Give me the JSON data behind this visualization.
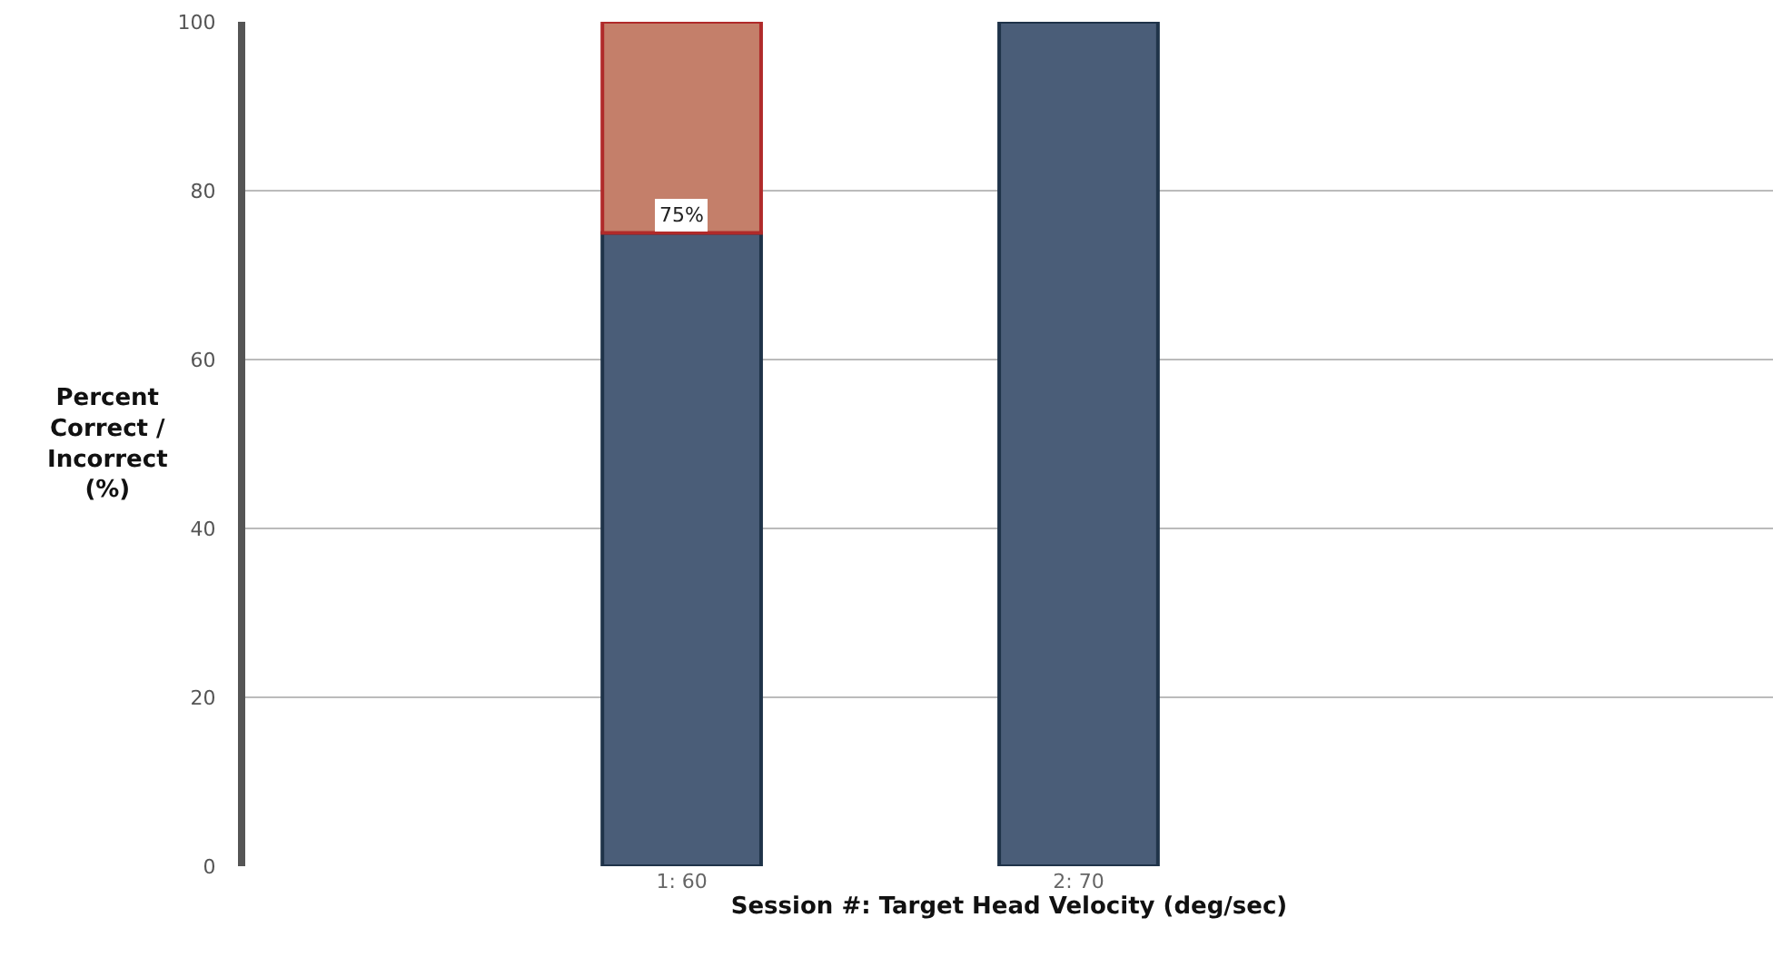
{
  "chart_data": {
    "type": "bar",
    "stacked": true,
    "xlabel": "Session #: Target Head Velocity (deg/sec)",
    "ylabel": "Percent Correct / Incorrect (%)",
    "categories": [
      "1: 60",
      "2: 70"
    ],
    "series": [
      {
        "color": "#4a5d78",
        "values": [
          75,
          100
        ],
        "value_labels": [
          "75%",
          null
        ]
      },
      {
        "color": "#c47f6a",
        "values": [
          25,
          0
        ]
      }
    ],
    "ylim": [
      0,
      100
    ],
    "yticks": [
      0,
      20,
      40,
      60,
      80,
      100
    ],
    "grid": "y"
  }
}
